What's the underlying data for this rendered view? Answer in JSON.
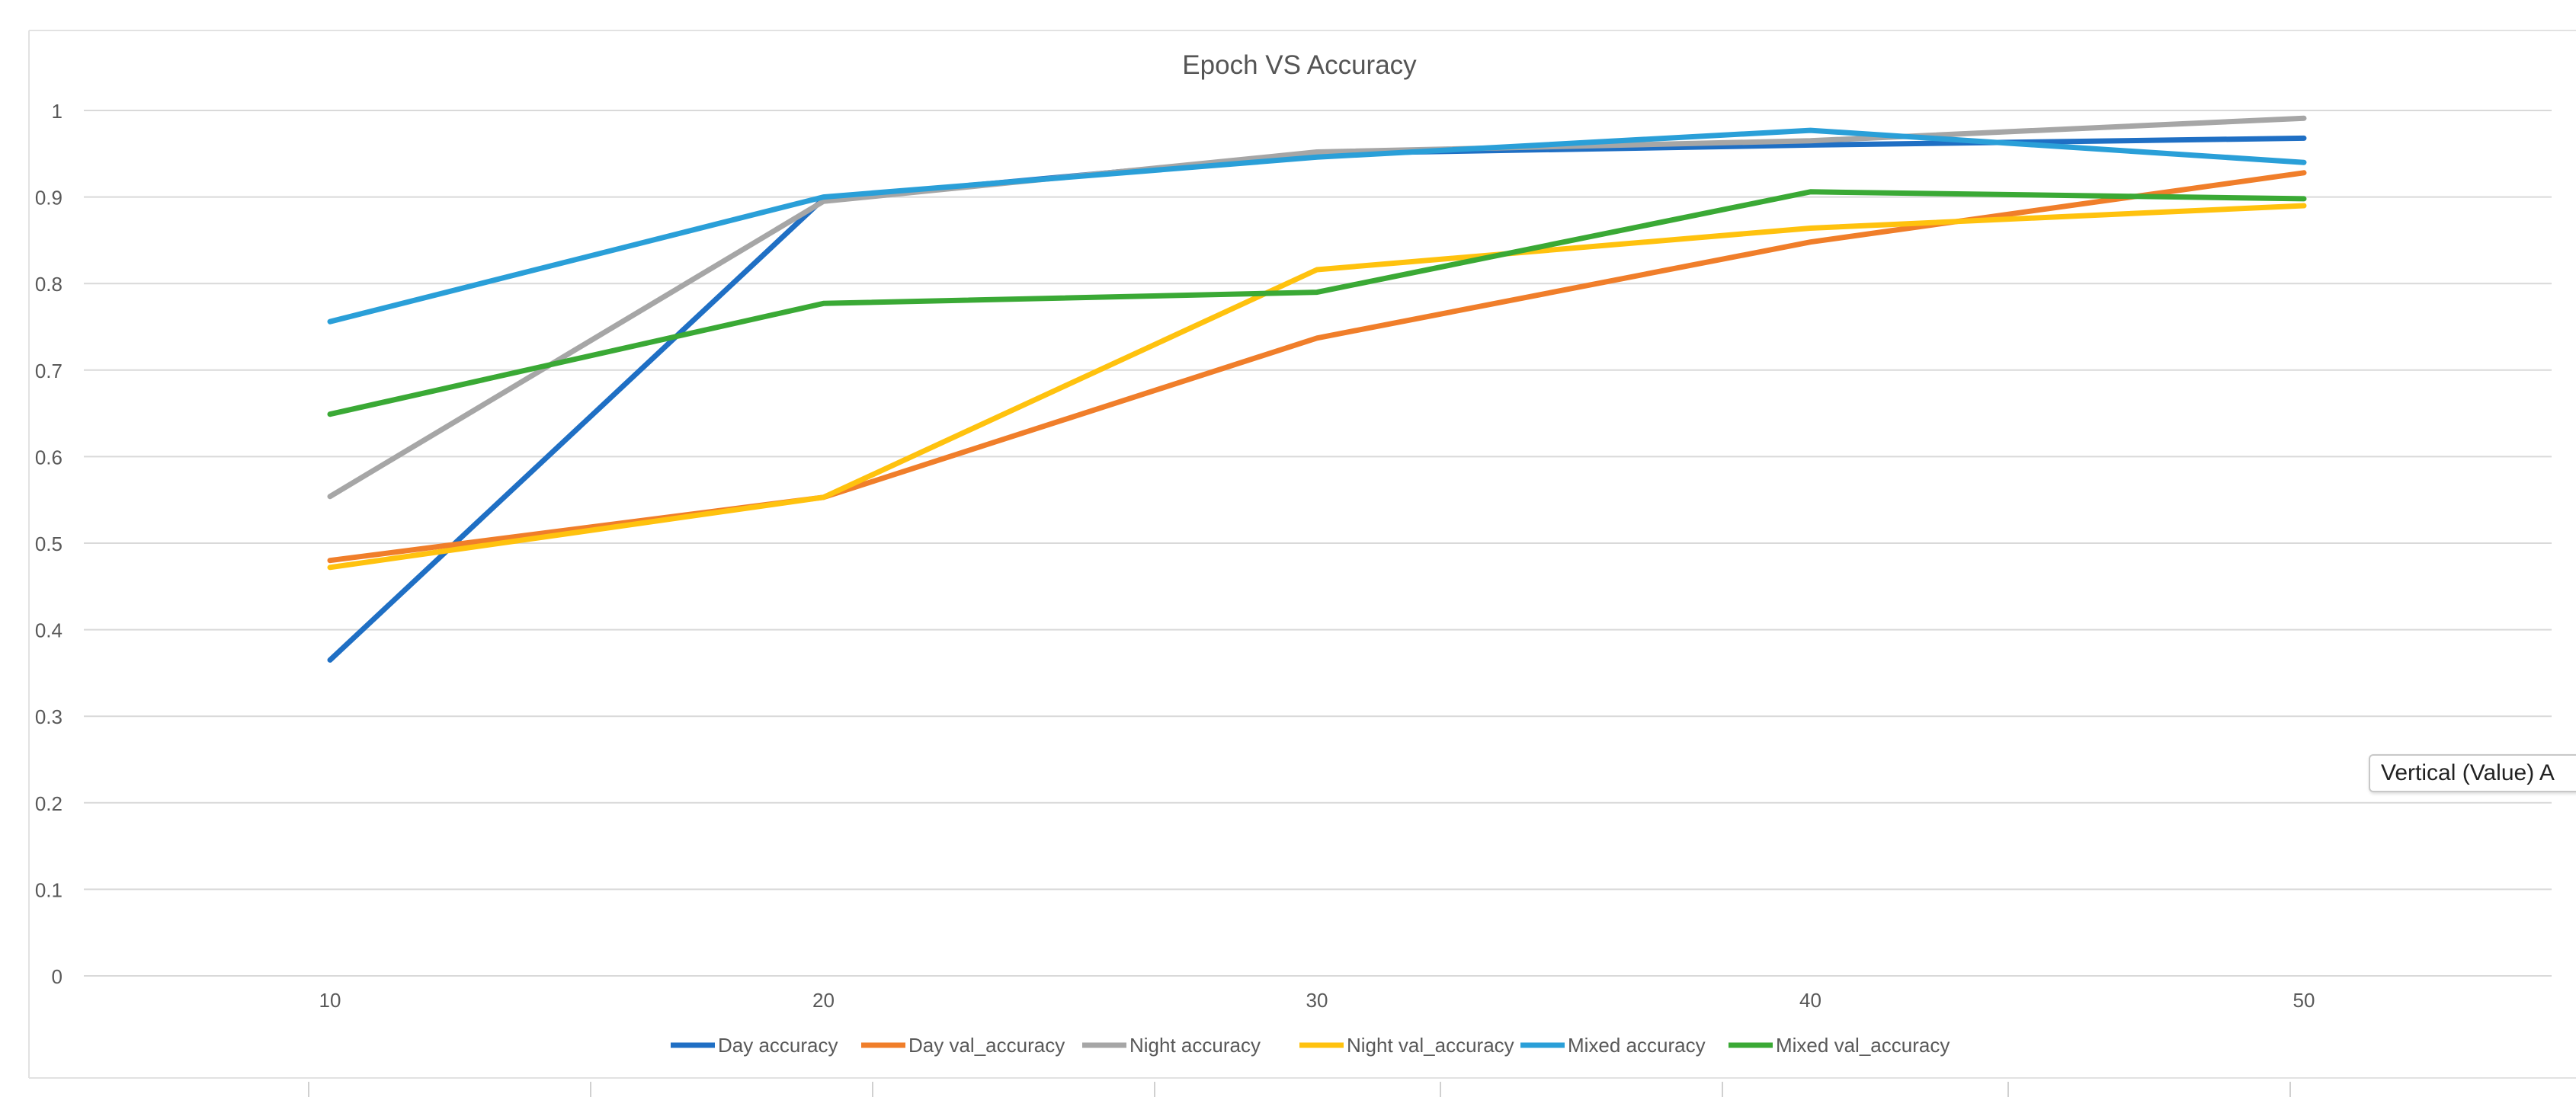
{
  "chart_data": {
    "type": "line",
    "title": "Epoch VS Accuracy",
    "xlabel": "",
    "ylabel": "",
    "categories": [
      10,
      20,
      30,
      40,
      50
    ],
    "y_ticks": [
      0,
      0.1,
      0.2,
      0.3,
      0.4,
      0.5,
      0.6,
      0.7,
      0.8,
      0.9,
      1
    ],
    "ylim": [
      0,
      1
    ],
    "grid": true,
    "legend_position": "bottom",
    "series": [
      {
        "name": "Day accuracy",
        "color": "#1f6fc4",
        "values": [
          0.365,
          0.898,
          0.95,
          0.96,
          0.968
        ]
      },
      {
        "name": "Day val_accuracy",
        "color": "#f07e2a",
        "values": [
          0.48,
          0.553,
          0.737,
          0.848,
          0.928
        ]
      },
      {
        "name": "Night accuracy",
        "color": "#a6a6a6",
        "values": [
          0.554,
          0.895,
          0.952,
          0.965,
          0.991
        ]
      },
      {
        "name": "Night val_accuracy",
        "color": "#ffc20e",
        "values": [
          0.472,
          0.553,
          0.816,
          0.864,
          0.89
        ]
      },
      {
        "name": "Mixed accuracy",
        "color": "#2a9fd8",
        "values": [
          0.756,
          0.9,
          0.946,
          0.977,
          0.94
        ]
      },
      {
        "name": "Mixed val_accuracy",
        "color": "#3aa935",
        "values": [
          0.649,
          0.777,
          0.79,
          0.906,
          0.898
        ]
      }
    ]
  },
  "tooltip": {
    "text": "Vertical (Value) A"
  }
}
